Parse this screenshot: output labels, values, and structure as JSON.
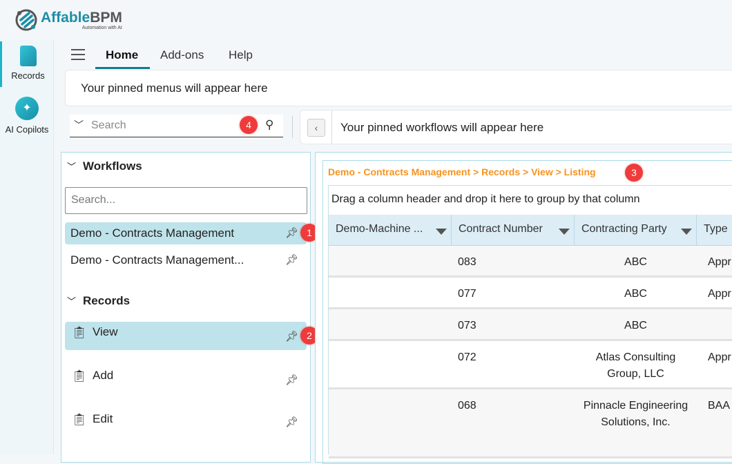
{
  "brand": {
    "name_a": "Affable",
    "name_b": "BPM",
    "tagline": "Automation with AI"
  },
  "rail": [
    {
      "label": "Records",
      "icon": "document-icon"
    },
    {
      "label": "AI Copilots",
      "icon": "sparkle-icon"
    }
  ],
  "tabs": [
    {
      "label": "Home",
      "active": true
    },
    {
      "label": "Add-ons"
    },
    {
      "label": "Help"
    }
  ],
  "pinned_menus": "Your pinned menus will appear here",
  "search": {
    "placeholder": "Search",
    "badge": "4"
  },
  "pinned_workflows": "Your pinned workflows will appear here",
  "sidebar": {
    "workflows_title": "Workflows",
    "search_placeholder": "Search...",
    "workflows": [
      {
        "label": "Demo - Contracts Management",
        "badge": "1",
        "selected": true
      },
      {
        "label": "Demo - Contracts Management..."
      }
    ],
    "records_title": "Records",
    "records": [
      {
        "label": "View",
        "badge": "2",
        "selected": true,
        "icon": "clipboard-view-icon"
      },
      {
        "label": "Add",
        "icon": "clipboard-add-icon"
      },
      {
        "label": "Edit",
        "icon": "clipboard-edit-icon"
      }
    ]
  },
  "breadcrumb": {
    "text": "Demo - Contracts Management > Records > View > Listing",
    "badge": "3",
    "color": "#f7931e"
  },
  "grid": {
    "group_hint": "Drag a column header and drop it here to group by that column",
    "columns": [
      "Demo-Machine ...",
      "Contract Number",
      "Contracting Party",
      "Type"
    ],
    "rows": [
      [
        "",
        "083",
        "ABC",
        "Appr"
      ],
      [
        "",
        "077",
        "ABC",
        "Appr"
      ],
      [
        "",
        "073",
        "ABC",
        ""
      ],
      [
        "",
        "072",
        "Atlas Consulting Group, LLC",
        "Appr"
      ],
      [
        "",
        "068",
        "Pinnacle Engineering Solutions, Inc.",
        "BAA"
      ]
    ]
  }
}
